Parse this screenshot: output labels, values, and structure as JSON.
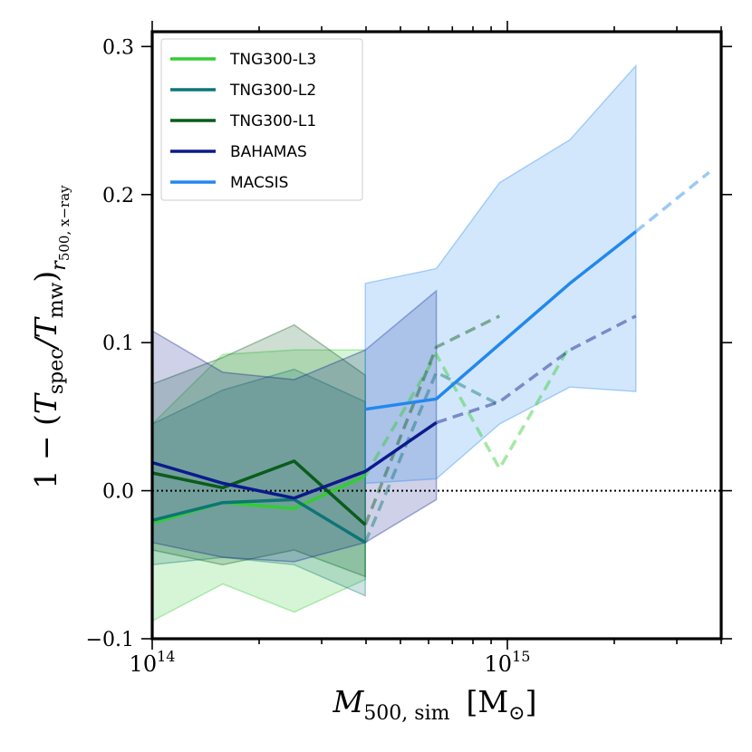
{
  "chart_data": {
    "type": "line",
    "xscale": "log",
    "xlim": [
      100000000000000.0,
      4000000000000000.0
    ],
    "ylim": [
      -0.1,
      0.31
    ],
    "x_ticks": [
      {
        "value": 100000000000000.0,
        "base": "10",
        "exp": "14"
      },
      {
        "value": 1000000000000000.0,
        "base": "10",
        "exp": "15"
      }
    ],
    "y_ticks": [
      {
        "value": -0.1,
        "label": "−0.1"
      },
      {
        "value": 0.0,
        "label": "0.0"
      },
      {
        "value": 0.1,
        "label": "0.1"
      },
      {
        "value": 0.2,
        "label": "0.2"
      },
      {
        "value": 0.3,
        "label": "0.3"
      }
    ],
    "ylabel": {
      "main": "1 − (",
      "t1": "T",
      "s1": "spec",
      "slash": "/",
      "t2": "T",
      "s2": "mw",
      "close": ")",
      "sub": "r",
      "sub2": "500, x−ray"
    },
    "xlabel": {
      "main": "M",
      "sub": "500, sim",
      "unit": "[M",
      "unit_sub": "⊙",
      "unit_close": "]"
    },
    "reference_line": {
      "y": 0.0,
      "style": "dotted"
    },
    "series": [
      {
        "name": "TNG300-L3",
        "color": "#33cc33",
        "x": [
          100000000000000.0,
          158000000000000.0,
          251000000000000.0,
          398000000000000.0
        ],
        "y": [
          -0.022,
          -0.008,
          -0.012,
          0.01
        ],
        "band_lower": [
          -0.088,
          -0.063,
          -0.082,
          -0.06
        ],
        "band_upper": [
          0.045,
          0.092,
          0.095,
          0.095
        ],
        "dashed_x": [
          398000000000000.0,
          631000000000000.0,
          950000000000000.0,
          1500000000000000.0
        ],
        "dashed_y": [
          0.01,
          0.092,
          0.015,
          0.098
        ]
      },
      {
        "name": "TNG300-L2",
        "color": "#0e7575",
        "x": [
          100000000000000.0,
          158000000000000.0,
          251000000000000.0,
          398000000000000.0
        ],
        "y": [
          -0.02,
          -0.008,
          -0.006,
          -0.035
        ],
        "band_lower": [
          -0.05,
          -0.045,
          -0.05,
          -0.071
        ],
        "band_upper": [
          0.045,
          0.068,
          0.082,
          0.06
        ],
        "dashed_x": [
          398000000000000.0,
          631000000000000.0,
          950000000000000.0
        ],
        "dashed_y": [
          -0.035,
          0.08,
          0.058
        ]
      },
      {
        "name": "TNG300-L1",
        "color": "#0a5c1c",
        "x": [
          100000000000000.0,
          158000000000000.0,
          251000000000000.0,
          398000000000000.0
        ],
        "y": [
          0.012,
          0.002,
          0.02,
          -0.023
        ],
        "band_lower": [
          -0.04,
          -0.05,
          -0.04,
          -0.058
        ],
        "band_upper": [
          0.072,
          0.09,
          0.112,
          0.078
        ],
        "dashed_x": [
          398000000000000.0,
          631000000000000.0,
          950000000000000.0
        ],
        "dashed_y": [
          -0.023,
          0.097,
          0.118
        ]
      },
      {
        "name": "BAHAMAS",
        "color": "#0c1a8c",
        "x": [
          100000000000000.0,
          158000000000000.0,
          251000000000000.0,
          398000000000000.0,
          631000000000000.0
        ],
        "y": [
          0.019,
          0.005,
          -0.005,
          0.013,
          0.046
        ],
        "band_lower": [
          -0.035,
          -0.045,
          -0.048,
          -0.035,
          -0.006
        ],
        "band_upper": [
          0.108,
          0.08,
          0.075,
          0.095,
          0.135
        ],
        "dashed_x": [
          631000000000000.0,
          950000000000000.0,
          1500000000000000.0,
          2300000000000000.0
        ],
        "dashed_y": [
          0.046,
          0.06,
          0.095,
          0.118
        ]
      },
      {
        "name": "MACSIS",
        "color": "#2288ee",
        "x": [
          398000000000000.0,
          631000000000000.0,
          1500000000000000.0,
          2300000000000000.0
        ],
        "y": [
          0.055,
          0.062,
          0.14,
          0.175
        ],
        "band_lower": [
          0.005,
          0.008,
          0.07,
          0.067
        ],
        "band_upper": [
          0.14,
          0.15,
          0.237,
          0.287
        ],
        "band_x": [
          398000000000000.0,
          631000000000000.0,
          950000000000000.0,
          1500000000000000.0,
          2300000000000000.0
        ],
        "band_lower_full": [
          0.005,
          0.008,
          0.045,
          0.07,
          0.067
        ],
        "band_upper_full": [
          0.14,
          0.15,
          0.208,
          0.237,
          0.287
        ],
        "dashed_x": [
          2300000000000000.0,
          3700000000000000.0
        ],
        "dashed_y": [
          0.175,
          0.215
        ]
      }
    ],
    "legend": {
      "placement": "top-left",
      "entries": [
        "TNG300-L3",
        "TNG300-L2",
        "TNG300-L1",
        "BAHAMAS",
        "MACSIS"
      ]
    }
  }
}
